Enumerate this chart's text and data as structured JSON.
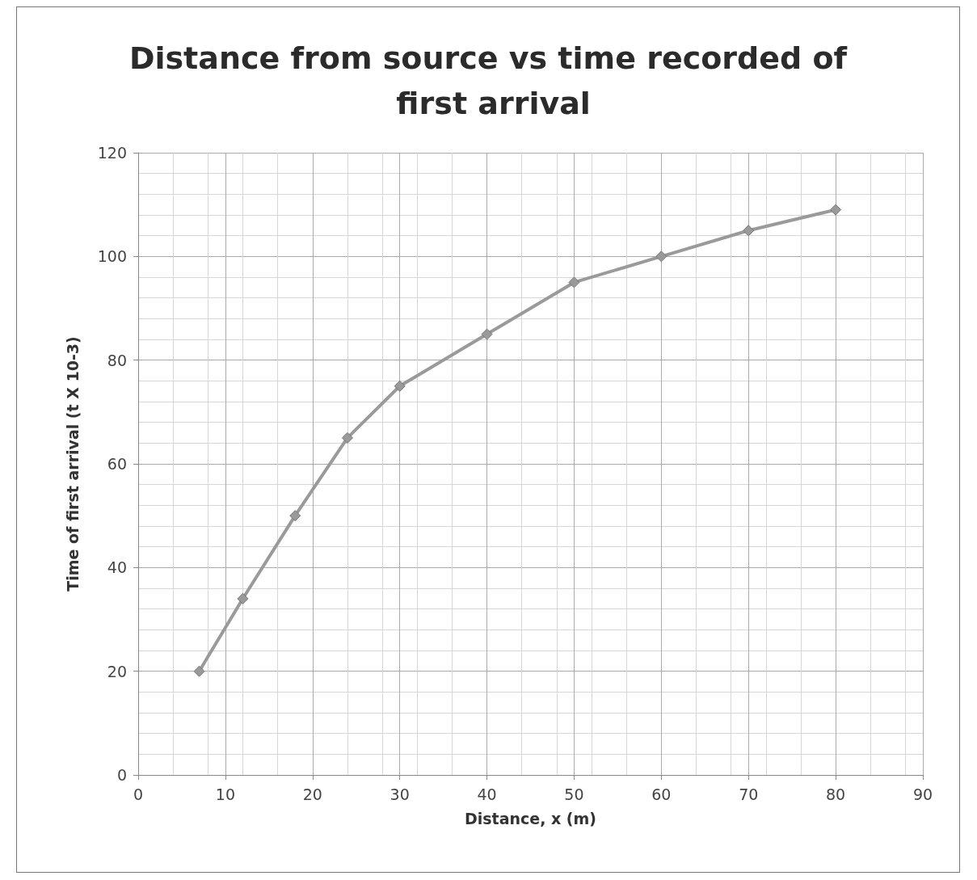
{
  "chart_data": {
    "type": "line",
    "title": "Distance from source vs time recorded of first arrival",
    "xlabel": "Distance, x (m)",
    "ylabel": "Time of first arrival (t X 10-3)",
    "x": [
      7,
      12,
      18,
      24,
      30,
      40,
      50,
      60,
      70,
      80
    ],
    "series": [
      {
        "color": "#9a9a9a",
        "values": [
          20,
          34,
          50,
          65,
          75,
          85,
          95,
          100,
          105,
          109
        ]
      }
    ],
    "xlim": [
      0,
      90
    ],
    "xticks": [
      0,
      10,
      20,
      30,
      40,
      50,
      60,
      70,
      80,
      90
    ],
    "ylim": [
      0,
      120
    ],
    "yticks": [
      0,
      20,
      40,
      60,
      80,
      100,
      120
    ],
    "grid": true,
    "marker": "diamond",
    "line_style": "solid"
  }
}
